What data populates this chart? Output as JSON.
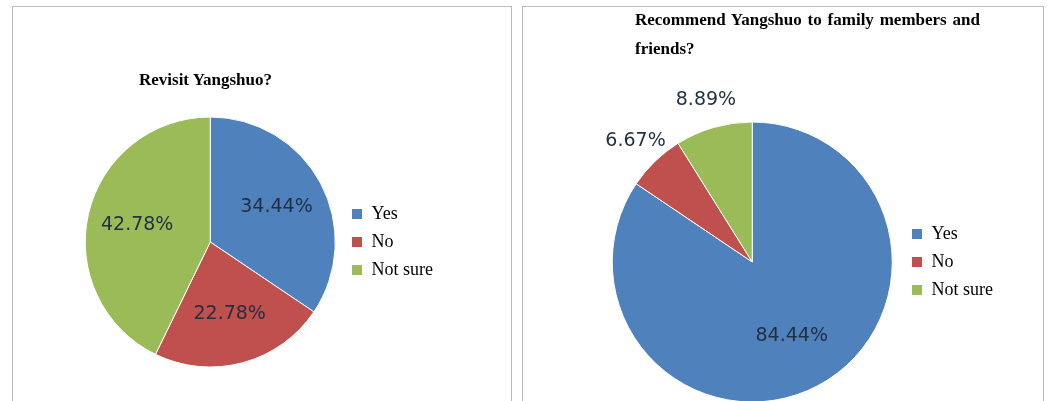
{
  "chart_data": [
    {
      "type": "pie",
      "title": "Revisit Yangshuo?",
      "categories": [
        "Yes",
        "No",
        "Not sure"
      ],
      "values": [
        34.44,
        22.78,
        42.78
      ],
      "colors": [
        "#4f81bd",
        "#c0504d",
        "#9bbb59"
      ],
      "value_labels": [
        "34.44%",
        "22.78%",
        "42.78%"
      ],
      "legend": "right"
    },
    {
      "type": "pie",
      "title": "Recommend Yangshuo to family members and friends?",
      "categories": [
        "Yes",
        "No",
        "Not sure"
      ],
      "values": [
        84.44,
        6.67,
        8.89
      ],
      "colors": [
        "#4f81bd",
        "#c0504d",
        "#9bbb59"
      ],
      "value_labels": [
        "84.44%",
        "6.67%",
        "8.89%"
      ],
      "legend": "right"
    }
  ]
}
